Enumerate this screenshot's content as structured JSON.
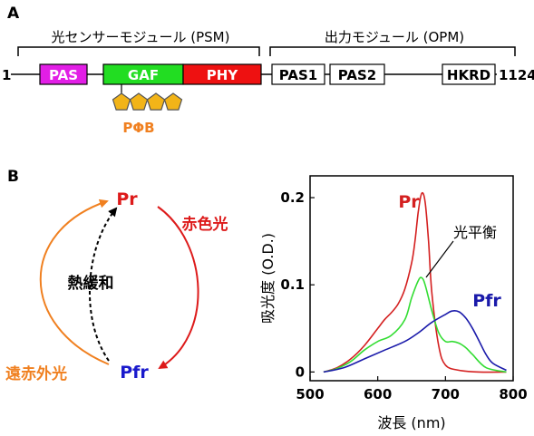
{
  "panel_a": {
    "label": "A",
    "psm_label": "光センサーモジュール (PSM)",
    "opm_label": "出力モジュール (OPM)",
    "start": "1",
    "end": "1124",
    "domains": [
      {
        "name": "PAS",
        "fill": "#e21ee6",
        "text_color": "#ffffff"
      },
      {
        "name": "GAF",
        "fill": "#22dd22",
        "text_color": "#ffffff"
      },
      {
        "name": "PHY",
        "fill": "#ee1111",
        "text_color": "#ffffff"
      },
      {
        "name": "PAS1",
        "fill": "#ffffff",
        "text_color": "#000000"
      },
      {
        "name": "PAS2",
        "fill": "#ffffff",
        "text_color": "#000000"
      },
      {
        "name": "HKRD",
        "fill": "#ffffff",
        "text_color": "#000000"
      }
    ],
    "chromophore_label": "PΦB",
    "chromophore_color": "#f2b418"
  },
  "panel_b": {
    "label": "B",
    "cycle": {
      "pr": "Pr",
      "pfr": "Pfr",
      "red_light": "赤色光",
      "far_red_light": "遠赤外光",
      "thermal": "熱緩和",
      "pr_color": "#dd1a1a",
      "pfr_color": "#1a1acc",
      "far_red_color": "#f08020"
    },
    "chart_data": {
      "type": "line",
      "xlabel": "波長 (nm)",
      "ylabel": "吸光度 (O.D.)",
      "xlim": [
        500,
        800
      ],
      "ylim": [
        -0.01,
        0.225
      ],
      "xticks": [
        "500",
        "600",
        "700",
        "800"
      ],
      "yticks": [
        "0",
        "0.1",
        "0.2"
      ],
      "series": [
        {
          "name": "Pr",
          "color": "#d42020",
          "x": [
            520,
            540,
            560,
            580,
            600,
            610,
            620,
            630,
            640,
            650,
            655,
            660,
            665,
            670,
            675,
            680,
            690,
            700,
            720,
            750,
            790
          ],
          "y": [
            0.0,
            0.005,
            0.015,
            0.03,
            0.05,
            0.06,
            0.068,
            0.078,
            0.095,
            0.125,
            0.15,
            0.185,
            0.205,
            0.195,
            0.15,
            0.09,
            0.03,
            0.008,
            0.002,
            0.0,
            0.0
          ]
        },
        {
          "name": "光平衡",
          "color": "#33dd33",
          "x": [
            520,
            540,
            560,
            580,
            600,
            620,
            640,
            650,
            660,
            665,
            670,
            680,
            690,
            700,
            710,
            720,
            730,
            740,
            760,
            790
          ],
          "y": [
            0.0,
            0.004,
            0.012,
            0.025,
            0.035,
            0.042,
            0.06,
            0.085,
            0.105,
            0.108,
            0.1,
            0.07,
            0.045,
            0.035,
            0.035,
            0.033,
            0.028,
            0.02,
            0.005,
            0.0
          ]
        },
        {
          "name": "Pfr",
          "color": "#1a1aaa",
          "x": [
            520,
            550,
            580,
            610,
            640,
            660,
            680,
            700,
            710,
            720,
            730,
            740,
            750,
            760,
            770,
            790
          ],
          "y": [
            0.0,
            0.005,
            0.015,
            0.025,
            0.035,
            0.045,
            0.057,
            0.066,
            0.07,
            0.069,
            0.062,
            0.05,
            0.035,
            0.02,
            0.01,
            0.002
          ]
        }
      ],
      "annotations": [
        {
          "text": "Pr",
          "color": "#d42020"
        },
        {
          "text": "光平衡",
          "color": "#000000"
        },
        {
          "text": "Pfr",
          "color": "#1a1aaa"
        }
      ]
    }
  }
}
